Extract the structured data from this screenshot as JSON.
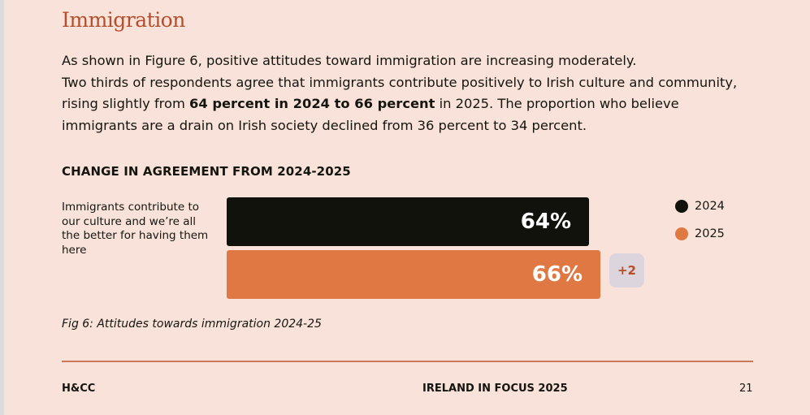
{
  "heading": "Immigration",
  "paragraph": {
    "line1": "As shown in Figure 6, positive attitudes toward immigration are increasing moderately.",
    "line2_pre": "Two thirds of respondents agree that immigrants contribute positively to Irish culture and community, rising slightly from ",
    "line2_bold": "64 percent in 2024 to 66 percent",
    "line2_post": " in 2025. The proportion who believe immigrants are a drain on Irish society declined from 36 percent to 34 percent."
  },
  "chart_data": {
    "type": "bar",
    "orientation": "horizontal",
    "title": "CHANGE IN AGREEMENT FROM 2024-2025",
    "categories": [
      "Immigrants contribute to our culture and we’re all the better for having them here"
    ],
    "series": [
      {
        "name": "2024",
        "values": [
          64
        ],
        "label": "64%",
        "color": "#12120c"
      },
      {
        "name": "2025",
        "values": [
          66
        ],
        "label": "66%",
        "color": "#e07843"
      }
    ],
    "annotation": "+2",
    "legend_position": "right"
  },
  "caption": "Fig 6: Attitudes towards immigration 2024-25",
  "footer": {
    "left": "H&CC",
    "center": "IRELAND IN FOCUS 2025",
    "page_number": "21"
  }
}
